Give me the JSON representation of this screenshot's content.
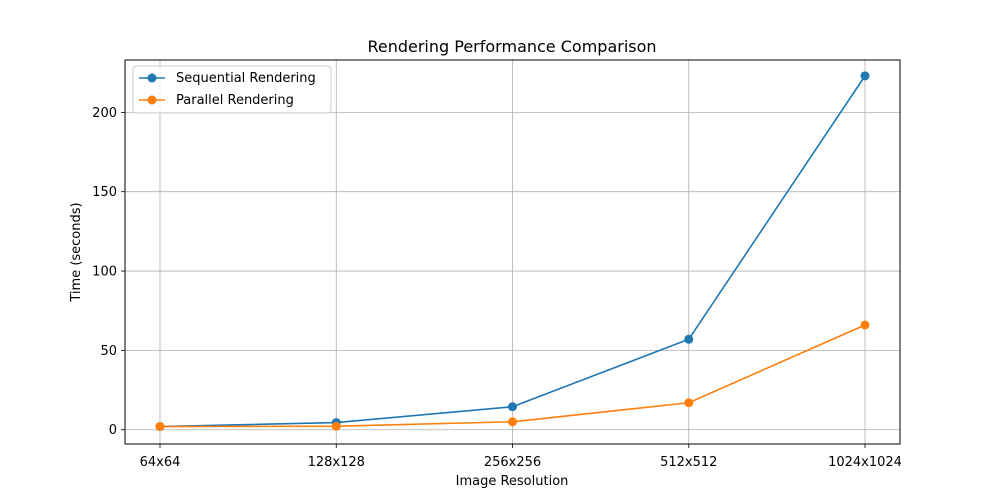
{
  "chart_data": {
    "type": "line",
    "title": "Rendering Performance Comparison",
    "xlabel": "Image Resolution",
    "ylabel": "Time (seconds)",
    "categories": [
      "64x64",
      "128x128",
      "256x256",
      "512x512",
      "1024x1024"
    ],
    "ylim": [
      -9,
      233
    ],
    "yticks": [
      0,
      50,
      100,
      150,
      200
    ],
    "grid": true,
    "legend_position": "top-left",
    "series": [
      {
        "name": "Sequential Rendering",
        "color": "#1f77b4",
        "marker": "circle",
        "values": [
          2.0,
          4.5,
          14.5,
          57.0,
          223.0
        ]
      },
      {
        "name": "Parallel Rendering",
        "color": "#ff7f0e",
        "marker": "circle",
        "values": [
          2.0,
          2.2,
          5.0,
          17.0,
          66.0
        ]
      }
    ]
  }
}
